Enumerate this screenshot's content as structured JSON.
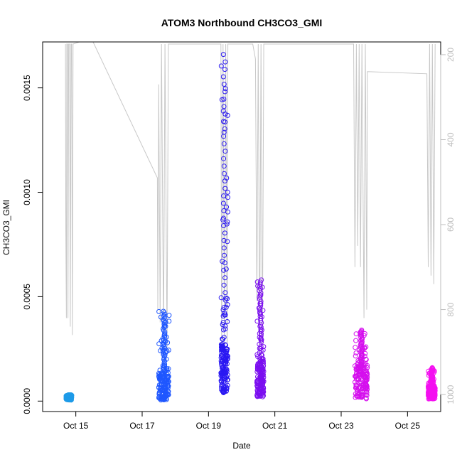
{
  "chart_data": {
    "type": "scatter",
    "title": "ATOM3 Northbound CH3CO3_GMI",
    "xlabel": "Date",
    "ylabel": "CH3CO3_GMI",
    "xlim": [
      "2017-10-14T00:00",
      "2017-10-26T00:00"
    ],
    "ylim": [
      -5e-05,
      0.00172
    ],
    "x_ticks": [
      {
        "date": "2017-10-15",
        "label": "Oct 15"
      },
      {
        "date": "2017-10-17",
        "label": "Oct 17"
      },
      {
        "date": "2017-10-19",
        "label": "Oct 19"
      },
      {
        "date": "2017-10-21",
        "label": "Oct 21"
      },
      {
        "date": "2017-10-23",
        "label": "Oct 23"
      },
      {
        "date": "2017-10-25",
        "label": "Oct 25"
      }
    ],
    "y_ticks": [
      0.0,
      0.0005,
      0.001,
      0.0015
    ],
    "y_tick_labels": [
      "0.0000",
      "0.0005",
      "0.0010",
      "0.0015"
    ],
    "y2": {
      "reversed": true,
      "lim": [
        1040,
        170
      ],
      "ticks": [
        200,
        400,
        600,
        800,
        1000
      ],
      "tick_labels": [
        "200",
        "400",
        "600",
        "800",
        "1000"
      ],
      "color": "#bebebe"
    },
    "grid": false,
    "legend": "none",
    "flights": [
      {
        "start": "2017-10-14T17:00",
        "end": "2017-10-14T21:00",
        "min": 5e-06,
        "max": 2.5e-05,
        "peak": 3e-05,
        "color": "#1e9be8"
      },
      {
        "start": "2017-10-17T12:00",
        "end": "2017-10-17T19:30",
        "min": 5e-06,
        "max": 0.00013,
        "peak": 0.00043,
        "color": "#1f57ff"
      },
      {
        "start": "2017-10-19T09:00",
        "end": "2017-10-19T14:00",
        "min": 4e-05,
        "max": 0.00027,
        "peak": 0.00166,
        "color": "#2a18f2"
      },
      {
        "start": "2017-10-20T11:00",
        "end": "2017-10-20T16:00",
        "min": 2e-05,
        "max": 0.00018,
        "peak": 0.00058,
        "color": "#7b0ff0"
      },
      {
        "start": "2017-10-23T10:00",
        "end": "2017-10-23T19:00",
        "min": 1e-05,
        "max": 0.00016,
        "peak": 0.00034,
        "color": "#d50fee"
      },
      {
        "start": "2017-10-25T15:00",
        "end": "2017-10-25T20:00",
        "min": 1e-05,
        "max": 7e-05,
        "peak": 0.00016,
        "color": "#f40ff0"
      }
    ],
    "pressure_track": {
      "color": "#c8c8c8",
      "points": [
        [
          "2017-10-14T16:30",
          175
        ],
        [
          "2017-10-14T16:45",
          610
        ],
        [
          "2017-10-14T17:10",
          820
        ],
        [
          "2017-10-14T17:30",
          175
        ],
        [
          "2017-10-14T18:00",
          175
        ],
        [
          "2017-10-14T18:20",
          820
        ],
        [
          "2017-10-14T18:50",
          175
        ],
        [
          "2017-10-14T19:30",
          175
        ],
        [
          "2017-10-14T20:00",
          840
        ],
        [
          "2017-10-14T20:30",
          175
        ],
        [
          "2017-10-14T21:00",
          175
        ],
        [
          "2017-10-14T21:30",
          860
        ],
        [
          "2017-10-14T22:00",
          175
        ],
        [
          "2017-10-15T11:00",
          160
        ],
        [
          "2017-10-17T11:00",
          490
        ],
        [
          "2017-10-17T11:20",
          800
        ],
        [
          "2017-10-17T12:00",
          270
        ],
        [
          "2017-10-17T13:00",
          830
        ],
        [
          "2017-10-17T14:00",
          175
        ],
        [
          "2017-10-17T15:30",
          870
        ],
        [
          "2017-10-17T16:30",
          175
        ],
        [
          "2017-10-17T18:00",
          890
        ],
        [
          "2017-10-17T19:00",
          175
        ],
        [
          "2017-10-17T20:00",
          175
        ],
        [
          "2017-10-19T09:00",
          175
        ],
        [
          "2017-10-19T09:30",
          900
        ],
        [
          "2017-10-19T10:30",
          175
        ],
        [
          "2017-10-19T11:30",
          880
        ],
        [
          "2017-10-19T12:30",
          175
        ],
        [
          "2017-10-19T13:30",
          930
        ],
        [
          "2017-10-19T14:00",
          175
        ],
        [
          "2017-10-20T08:00",
          175
        ],
        [
          "2017-10-20T10:00",
          210
        ],
        [
          "2017-10-20T11:00",
          780
        ],
        [
          "2017-10-20T12:00",
          175
        ],
        [
          "2017-10-20T13:00",
          900
        ],
        [
          "2017-10-20T14:00",
          175
        ],
        [
          "2017-10-20T15:00",
          880
        ],
        [
          "2017-10-20T16:00",
          175
        ],
        [
          "2017-10-23T09:00",
          175
        ],
        [
          "2017-10-23T10:00",
          700
        ],
        [
          "2017-10-23T11:00",
          175
        ],
        [
          "2017-10-23T12:00",
          650
        ],
        [
          "2017-10-23T13:00",
          175
        ],
        [
          "2017-10-23T14:00",
          700
        ],
        [
          "2017-10-23T15:00",
          175
        ],
        [
          "2017-10-23T16:30",
          820
        ],
        [
          "2017-10-23T17:30",
          175
        ],
        [
          "2017-10-23T18:30",
          800
        ],
        [
          "2017-10-23T19:00",
          240
        ],
        [
          "2017-10-25T14:00",
          245
        ],
        [
          "2017-10-25T15:00",
          700
        ],
        [
          "2017-10-25T16:00",
          175
        ],
        [
          "2017-10-25T17:00",
          720
        ],
        [
          "2017-10-25T18:00",
          175
        ],
        [
          "2017-10-25T19:00",
          740
        ],
        [
          "2017-10-25T20:00",
          175
        ]
      ]
    }
  }
}
